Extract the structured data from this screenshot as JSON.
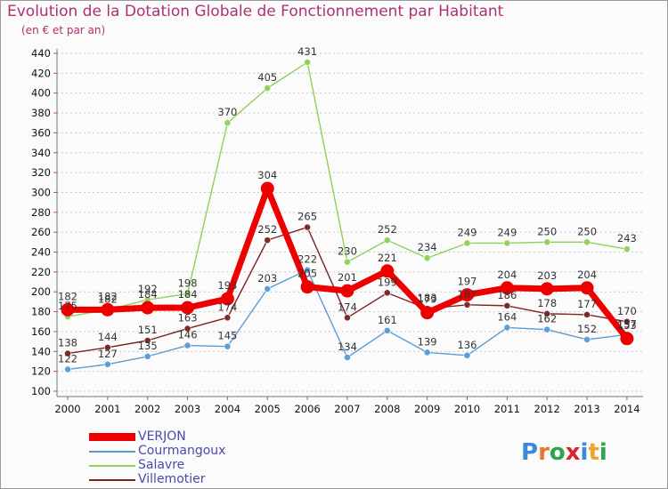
{
  "title": "Evolution de la Dotation Globale de Fonctionnement par Habitant",
  "subtitle": "(en € et par an)",
  "logo_text": "Proxiti",
  "chart_data": {
    "type": "line",
    "title": "Evolution de la Dotation Globale de Fonctionnement par Habitant",
    "subtitle": "(en € et par an)",
    "categories": [
      "2000",
      "2001",
      "2002",
      "2003",
      "2004",
      "2005",
      "2006",
      "2007",
      "2008",
      "2009",
      "2010",
      "2011",
      "2012",
      "2013",
      "2014"
    ],
    "ylim": [
      100,
      440
    ],
    "yticks": [
      100,
      120,
      140,
      160,
      180,
      200,
      220,
      240,
      260,
      280,
      300,
      320,
      340,
      360,
      380,
      400,
      420,
      440
    ],
    "grid": "horizontal dotted",
    "legend_position": "bottom-left",
    "series": [
      {
        "name": "VERJON",
        "color": "#ee0000",
        "values": [
          182,
          182,
          184,
          184,
          193,
          304,
          205,
          201,
          221,
          179,
          197,
          204,
          203,
          204,
          153
        ]
      },
      {
        "name": "Courmangoux",
        "color": "#5b9bd5",
        "values": [
          122,
          127,
          135,
          146,
          145,
          203,
          222,
          134,
          161,
          139,
          136,
          164,
          162,
          152,
          157
        ]
      },
      {
        "name": "Salavre",
        "color": "#90d05a",
        "values": [
          175,
          182,
          192,
          198,
          370,
          405,
          431,
          230,
          252,
          234,
          249,
          249,
          250,
          250,
          243
        ]
      },
      {
        "name": "Villemotier",
        "color": "#7b2424",
        "values": [
          138,
          144,
          151,
          163,
          174,
          252,
          265,
          174,
          199,
          183,
          187,
          186,
          178,
          177,
          170
        ]
      }
    ]
  }
}
